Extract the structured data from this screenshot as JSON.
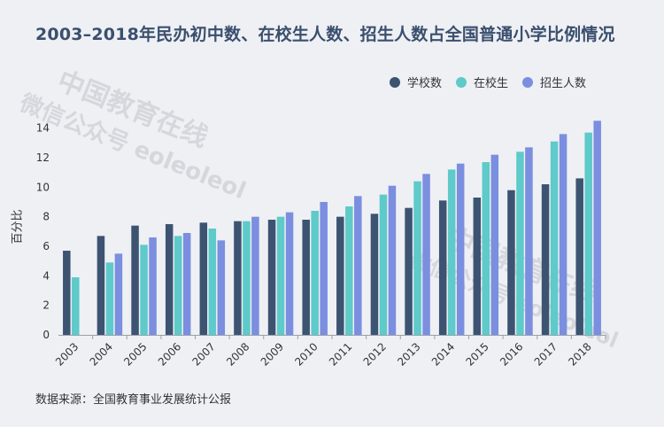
{
  "header": {
    "title": "2003–2018年民办初中数、在校生人数、招生人数占全国普通小学比例情况"
  },
  "footer": {
    "source": "数据来源：全国教育事业发展统计公报"
  },
  "watermarks": {
    "line1": "中国教育在线",
    "line2": "微信公众号 eoleoleol"
  },
  "colors": {
    "schools": "#3d5372",
    "students": "#5ecac9",
    "enrollment": "#7b8edf"
  },
  "chart_data": {
    "type": "bar",
    "title": "2003–2018年民办初中数、在校生人数、招生人数占全国普通小学比例情况",
    "xlabel": "",
    "ylabel": "百分比",
    "ylim": [
      0,
      15
    ],
    "yticks": [
      0,
      2,
      4,
      6,
      8,
      10,
      12,
      14
    ],
    "legend_position": "top-right",
    "grid": false,
    "categories": [
      "2003",
      "2004",
      "2005",
      "2006",
      "2007",
      "2008",
      "2009",
      "2010",
      "2011",
      "2012",
      "2013",
      "2014",
      "2015",
      "2016",
      "2017",
      "2018"
    ],
    "series": [
      {
        "name": "学校数",
        "color": "#3d5372",
        "values": [
          5.7,
          6.7,
          7.4,
          7.5,
          7.6,
          7.7,
          7.8,
          7.8,
          8.0,
          8.2,
          8.6,
          9.1,
          9.3,
          9.8,
          10.2,
          10.6
        ]
      },
      {
        "name": "在校生",
        "color": "#5ecac9",
        "values": [
          3.9,
          4.9,
          6.1,
          6.7,
          7.2,
          7.7,
          8.0,
          8.4,
          8.7,
          9.5,
          10.4,
          11.2,
          11.7,
          12.4,
          13.1,
          13.7
        ]
      },
      {
        "name": "招生人数",
        "color": "#7b8edf",
        "values": [
          null,
          5.5,
          6.6,
          6.9,
          6.4,
          8.0,
          8.3,
          9.0,
          9.4,
          10.1,
          10.9,
          11.6,
          12.2,
          12.7,
          13.6,
          14.5
        ]
      }
    ]
  }
}
